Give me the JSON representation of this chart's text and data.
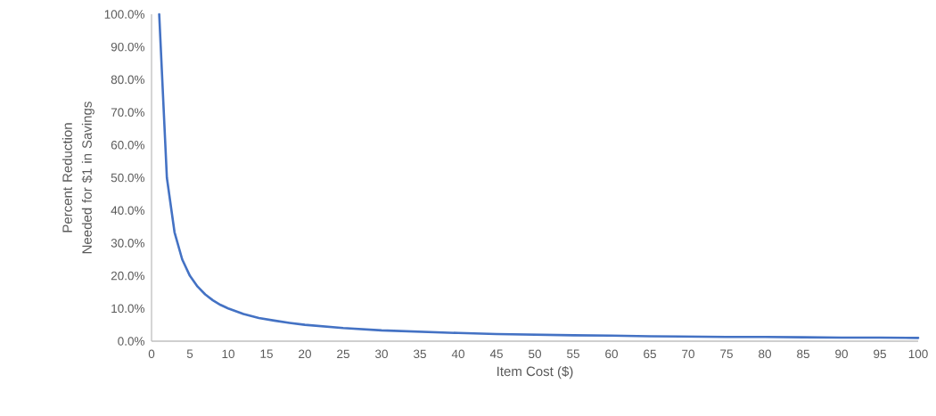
{
  "chart_data": {
    "type": "line",
    "xlabel": "Item Cost ($)",
    "ylabel": "Percent Reduction Needed for $1 in Savings",
    "xlim": [
      0,
      100
    ],
    "ylim": [
      0,
      100
    ],
    "xticks": [
      0,
      5,
      10,
      15,
      20,
      25,
      30,
      35,
      40,
      45,
      50,
      55,
      60,
      65,
      70,
      75,
      80,
      85,
      90,
      95,
      100
    ],
    "yticks": [
      {
        "value": 0,
        "label": "0.0%"
      },
      {
        "value": 10,
        "label": "10.0%"
      },
      {
        "value": 20,
        "label": "20.0%"
      },
      {
        "value": 30,
        "label": "30.0%"
      },
      {
        "value": 40,
        "label": "40.0%"
      },
      {
        "value": 50,
        "label": "50.0%"
      },
      {
        "value": 60,
        "label": "60.0%"
      },
      {
        "value": 70,
        "label": "70.0%"
      },
      {
        "value": 80,
        "label": "80.0%"
      },
      {
        "value": 90,
        "label": "90.0%"
      },
      {
        "value": 100,
        "label": "100.0%"
      }
    ],
    "grid": false,
    "legend": false,
    "marker": "none",
    "line_style": "solid",
    "series": [
      {
        "color": "#4472c4",
        "x": [
          1,
          2,
          3,
          4,
          5,
          6,
          7,
          8,
          9,
          10,
          12,
          14,
          16,
          18,
          20,
          25,
          30,
          35,
          40,
          45,
          50,
          55,
          60,
          65,
          70,
          75,
          80,
          85,
          90,
          95,
          100
        ],
        "values": [
          100,
          50,
          33.3,
          25,
          20,
          16.7,
          14.3,
          12.5,
          11.1,
          10,
          8.3,
          7.1,
          6.3,
          5.6,
          5,
          4,
          3.3,
          2.9,
          2.5,
          2.2,
          2,
          1.8,
          1.7,
          1.5,
          1.4,
          1.3,
          1.3,
          1.2,
          1.1,
          1.1,
          1
        ]
      }
    ]
  }
}
